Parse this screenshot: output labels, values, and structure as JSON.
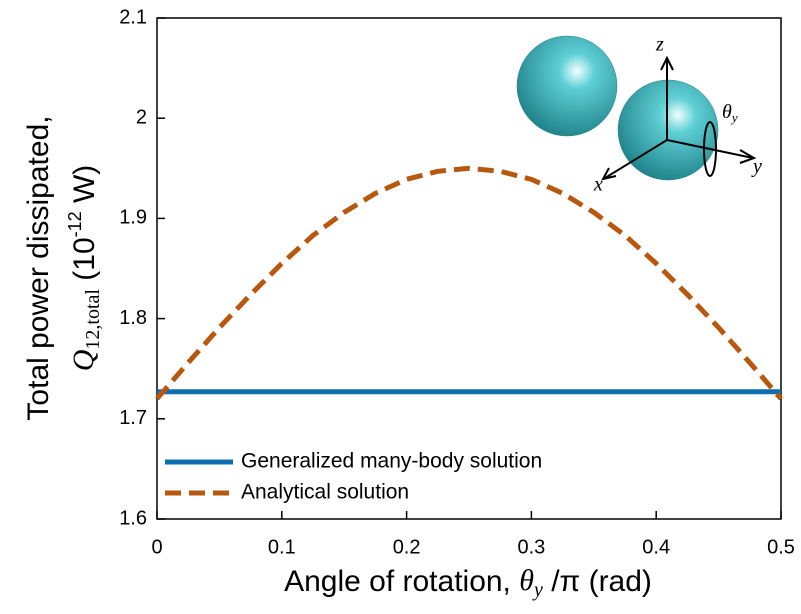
{
  "chart_data": {
    "type": "line",
    "x_label": {
      "text": "Angle of rotation, ",
      "symbol": "θ",
      "subscript": "y",
      "rest": " /π (rad)"
    },
    "y_label": {
      "line1": "Total power dissipated,",
      "symbol": "Q",
      "subscript": "12,total",
      "unit_start": " (10",
      "exponent": "-12",
      "unit_end": " W)"
    },
    "x": [
      0,
      0.025,
      0.05,
      0.075,
      0.1,
      0.125,
      0.15,
      0.175,
      0.2,
      0.225,
      0.25,
      0.275,
      0.3,
      0.325,
      0.35,
      0.375,
      0.4,
      0.425,
      0.45,
      0.475,
      0.5
    ],
    "series": [
      {
        "name": "Generalized many-body solution",
        "color": "#0e6eb0",
        "dash": false,
        "values": [
          1.727,
          1.727,
          1.727,
          1.727,
          1.727,
          1.727,
          1.727,
          1.727,
          1.727,
          1.727,
          1.727,
          1.727,
          1.727,
          1.727,
          1.727,
          1.727,
          1.727,
          1.727,
          1.727,
          1.727,
          1.727
        ]
      },
      {
        "name": "Analytical solution",
        "color": "#b8580e",
        "dash": true,
        "values": [
          1.72,
          1.756,
          1.791,
          1.824,
          1.855,
          1.883,
          1.906,
          1.925,
          1.939,
          1.947,
          1.95,
          1.947,
          1.939,
          1.925,
          1.906,
          1.883,
          1.855,
          1.824,
          1.791,
          1.756,
          1.72
        ]
      }
    ],
    "xlim": [
      0,
      0.5
    ],
    "xticks": [
      0,
      0.1,
      0.2,
      0.3,
      0.4,
      0.5
    ],
    "ylim": [
      1.6,
      2.1
    ],
    "yticks": [
      1.6,
      1.7,
      1.8,
      1.9,
      2,
      2.1
    ],
    "legend": "lower left",
    "inset_labels": {
      "z": "z",
      "x": "x",
      "y": "y",
      "theta": "θ",
      "theta_sub": "y"
    }
  }
}
